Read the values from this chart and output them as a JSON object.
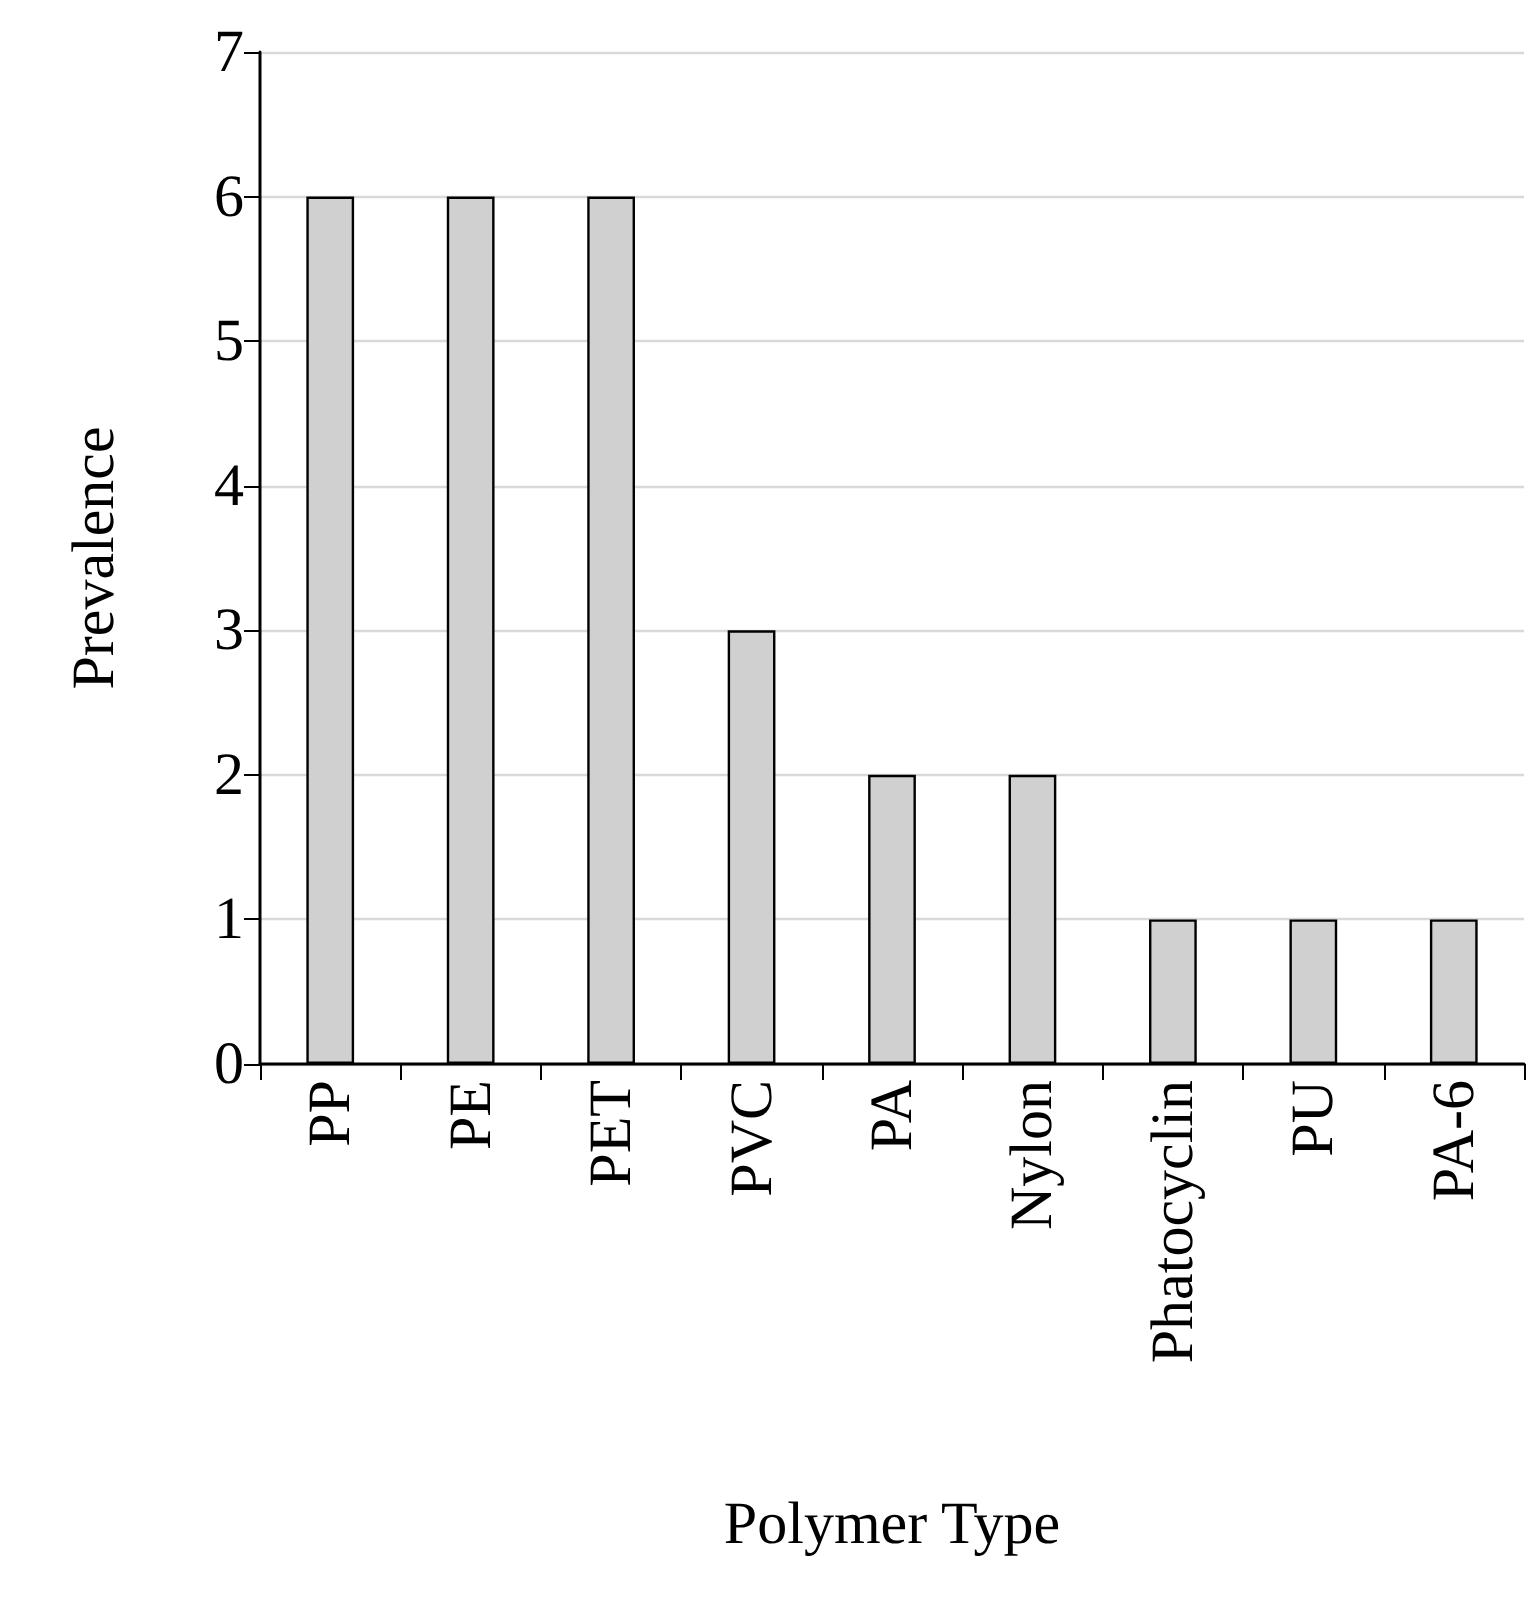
{
  "chart_data": {
    "type": "bar",
    "xlabel": "Polymer Type",
    "ylabel": "Prevalence",
    "categories": [
      "PP",
      "PE",
      "PET",
      "PVC",
      "PA",
      "Nylon",
      "Phatocyclin",
      "PU",
      "PA-6"
    ],
    "values": [
      6,
      6,
      6,
      3,
      2,
      2,
      1,
      1,
      1
    ],
    "color": "#d0d0d0",
    "ylim": [
      0,
      7
    ],
    "yticks": [
      0,
      1,
      2,
      3,
      4,
      5,
      6,
      7
    ],
    "grid": "y"
  }
}
